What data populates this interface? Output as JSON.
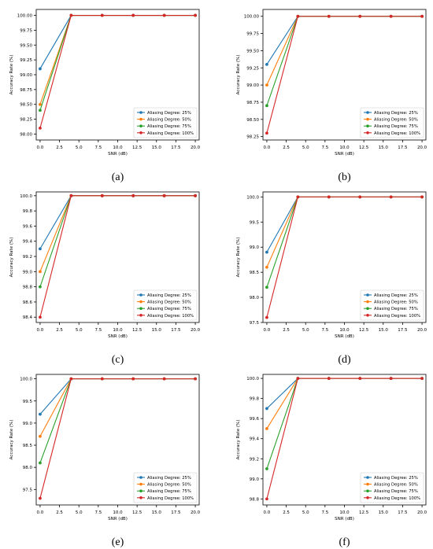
{
  "colors": [
    "#1f77b4",
    "#ff7f0e",
    "#2ca02c",
    "#d62728"
  ],
  "chart_data": [
    {
      "type": "line",
      "caption": "(a)",
      "xlabel": "SNR (dB)",
      "ylabel": "Accuracy Rate (%)",
      "xlim": [
        -0.5,
        20.5
      ],
      "ylim": [
        97.9,
        100.1
      ],
      "xticks": [
        "0.0",
        "2.5",
        "5.0",
        "7.5",
        "10.0",
        "12.5",
        "15.0",
        "17.5",
        "20.0"
      ],
      "yticks": [
        "98.00",
        "98.25",
        "98.50",
        "98.75",
        "99.00",
        "99.25",
        "99.50",
        "99.75",
        "100.00"
      ],
      "x": [
        0,
        4,
        8,
        12,
        16,
        20
      ],
      "legend_position": "lower right",
      "series": [
        {
          "name": "Aliasing Degree: 25%",
          "values": [
            99.1,
            100,
            100,
            100,
            100,
            100
          ]
        },
        {
          "name": "Aliasing Degree: 50%",
          "values": [
            98.5,
            100,
            100,
            100,
            100,
            100
          ]
        },
        {
          "name": "Aliasing Degree: 75%",
          "values": [
            98.4,
            100,
            100,
            100,
            100,
            100
          ]
        },
        {
          "name": "Aliasing Degree: 100%",
          "values": [
            98.1,
            100,
            100,
            100,
            100,
            100
          ]
        }
      ]
    },
    {
      "type": "line",
      "caption": "(b)",
      "xlabel": "SNR (dB)",
      "ylabel": "Accuracy Rate (%)",
      "xlim": [
        -0.5,
        20.5
      ],
      "ylim": [
        98.2,
        100.1
      ],
      "xticks": [
        "0.0",
        "2.5",
        "5.0",
        "7.5",
        "10.0",
        "12.5",
        "15.0",
        "17.5",
        "20.0"
      ],
      "yticks": [
        "98.25",
        "98.50",
        "98.75",
        "99.00",
        "99.25",
        "99.50",
        "99.75",
        "100.00"
      ],
      "x": [
        0,
        4,
        8,
        12,
        16,
        20
      ],
      "legend_position": "lower right",
      "series": [
        {
          "name": "Aliasing Degree: 25%",
          "values": [
            99.3,
            100,
            100,
            100,
            100,
            100
          ]
        },
        {
          "name": "Aliasing Degree: 50%",
          "values": [
            99.0,
            100,
            100,
            100,
            100,
            100
          ]
        },
        {
          "name": "Aliasing Degree: 75%",
          "values": [
            98.7,
            100,
            100,
            100,
            100,
            100
          ]
        },
        {
          "name": "Aliasing Degree: 100%",
          "values": [
            98.3,
            100,
            100,
            100,
            100,
            100
          ]
        }
      ]
    },
    {
      "type": "line",
      "caption": "(c)",
      "xlabel": "SNR (dB)",
      "ylabel": "Accuracy Rate (%)",
      "xlim": [
        -0.5,
        20.5
      ],
      "ylim": [
        98.33,
        100.05
      ],
      "xticks": [
        "0.0",
        "2.5",
        "5.0",
        "7.5",
        "10.0",
        "12.5",
        "15.0",
        "17.5",
        "20.0"
      ],
      "yticks": [
        "98.4",
        "98.6",
        "98.8",
        "99.0",
        "99.2",
        "99.4",
        "99.6",
        "99.8",
        "100.0"
      ],
      "x": [
        0,
        4,
        8,
        12,
        16,
        20
      ],
      "legend_position": "lower right",
      "series": [
        {
          "name": "Aliasing Degree: 25%",
          "values": [
            99.3,
            100,
            100,
            100,
            100,
            100
          ]
        },
        {
          "name": "Aliasing Degree: 50%",
          "values": [
            99.0,
            100,
            100,
            100,
            100,
            100
          ]
        },
        {
          "name": "Aliasing Degree: 75%",
          "values": [
            98.8,
            100,
            100,
            100,
            100,
            100
          ]
        },
        {
          "name": "Aliasing Degree: 100%",
          "values": [
            98.4,
            100,
            100,
            100,
            100,
            100
          ]
        }
      ]
    },
    {
      "type": "line",
      "caption": "(d)",
      "xlabel": "SNR (dB)",
      "ylabel": "Accuracy Rate (%)",
      "xlim": [
        -0.5,
        20.5
      ],
      "ylim": [
        97.5,
        100.1
      ],
      "xticks": [
        "0.0",
        "2.5",
        "5.0",
        "7.5",
        "10.0",
        "12.5",
        "15.0",
        "17.5",
        "20.0"
      ],
      "yticks": [
        "97.5",
        "98.0",
        "98.5",
        "99.0",
        "99.5",
        "100.0"
      ],
      "x": [
        0,
        4,
        8,
        12,
        16,
        20
      ],
      "legend_position": "lower right",
      "series": [
        {
          "name": "Aliasing Degree: 25%",
          "values": [
            98.9,
            100,
            100,
            100,
            100,
            100
          ]
        },
        {
          "name": "Aliasing Degree: 50%",
          "values": [
            98.6,
            100,
            100,
            100,
            100,
            100
          ]
        },
        {
          "name": "Aliasing Degree: 75%",
          "values": [
            98.2,
            100,
            100,
            100,
            100,
            100
          ]
        },
        {
          "name": "Aliasing Degree: 100%",
          "values": [
            97.6,
            100,
            100,
            100,
            100,
            100
          ]
        }
      ]
    },
    {
      "type": "line",
      "caption": "(e)",
      "xlabel": "SNR (dB)",
      "ylabel": "Accuracy Rate (%)",
      "xlim": [
        -0.5,
        20.5
      ],
      "ylim": [
        97.15,
        100.1
      ],
      "xticks": [
        "0.0",
        "2.5",
        "5.0",
        "7.5",
        "10.0",
        "12.5",
        "15.0",
        "17.5",
        "20.0"
      ],
      "yticks": [
        "97.5",
        "98.0",
        "98.5",
        "99.0",
        "99.5",
        "100.0"
      ],
      "x": [
        0,
        4,
        8,
        12,
        16,
        20
      ],
      "legend_position": "lower right",
      "series": [
        {
          "name": "Aliasing Degree: 25%",
          "values": [
            99.2,
            100,
            100,
            100,
            100,
            100
          ]
        },
        {
          "name": "Aliasing Degree: 50%",
          "values": [
            98.7,
            100,
            100,
            100,
            100,
            100
          ]
        },
        {
          "name": "Aliasing Degree: 75%",
          "values": [
            98.1,
            100,
            100,
            100,
            100,
            100
          ]
        },
        {
          "name": "Aliasing Degree: 100%",
          "values": [
            97.3,
            100,
            100,
            100,
            100,
            100
          ]
        }
      ]
    },
    {
      "type": "line",
      "caption": "(f)",
      "xlabel": "SNR (dB)",
      "ylabel": "Accuracy Rate (%)",
      "xlim": [
        -0.5,
        20.5
      ],
      "ylim": [
        98.74,
        100.04
      ],
      "xticks": [
        "0.0",
        "2.5",
        "5.0",
        "7.5",
        "10.0",
        "12.5",
        "15.0",
        "17.5",
        "20.0"
      ],
      "yticks": [
        "98.8",
        "99.0",
        "99.2",
        "99.4",
        "99.6",
        "99.8",
        "100.0"
      ],
      "x": [
        0,
        4,
        8,
        12,
        16,
        20
      ],
      "legend_position": "lower right",
      "series": [
        {
          "name": "Aliasing Degree: 25%",
          "values": [
            99.7,
            100,
            100,
            100,
            100,
            100
          ]
        },
        {
          "name": "Aliasing Degree: 50%",
          "values": [
            99.5,
            100,
            100,
            100,
            100,
            100
          ]
        },
        {
          "name": "Aliasing Degree: 75%",
          "values": [
            99.1,
            100,
            100,
            100,
            100,
            100
          ]
        },
        {
          "name": "Aliasing Degree: 100%",
          "values": [
            98.8,
            100,
            100,
            100,
            100,
            100
          ]
        }
      ]
    }
  ]
}
